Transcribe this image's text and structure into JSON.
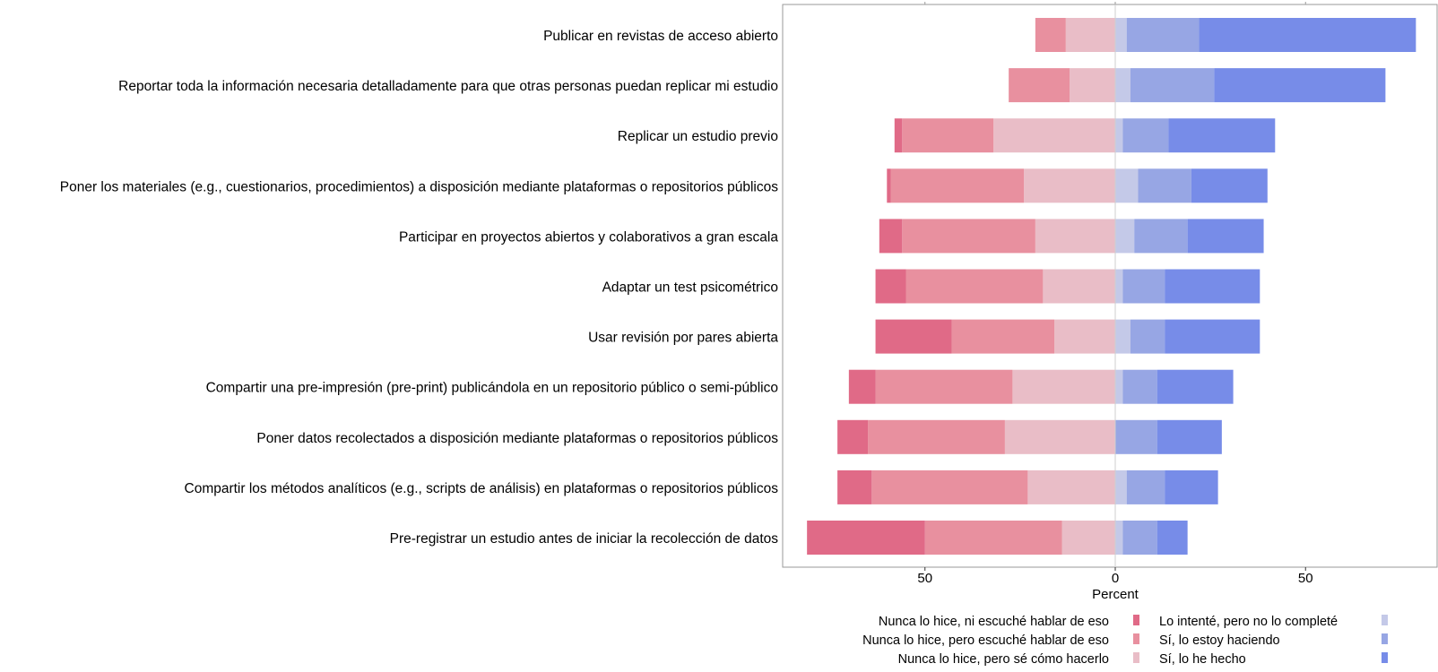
{
  "chart_data": {
    "type": "bar",
    "orientation": "horizontal",
    "stacking": "diverging",
    "xlabel": "Percent",
    "ylabel": "",
    "xlim": [
      -82,
      85
    ],
    "xticks": [
      -50,
      0,
      50
    ],
    "xtick_labels": [
      "50",
      "0",
      "50"
    ],
    "grid": false,
    "legend_position": "bottom",
    "categories": [
      "Publicar  en  revistas  de  acceso  abierto",
      "Reportar toda la información necesaria detalladamente para que otras personas puedan replicar mi estudio",
      "Replicar  un  estudio  previo",
      "Poner los materiales (e.g., cuestionarios, procedimientos) a disposición mediante plataformas o repositorios públicos",
      "Participar  en  proyectos  abiertos  y  colaborativos  a  gran  escala",
      "Adaptar un test psicométrico",
      "Usar  revisión  por  pares  abierta",
      "Compartir una pre-impresión (pre-print) publicándola en un repositorio público o semi-público",
      "Poner datos recolectados a disposición mediante plataformas o repositorios públicos",
      "Compartir los métodos analíticos (e.g., scripts de análisis) en plataformas o repositorios públicos",
      "Pre-registrar un estudio antes de iniciar la recolección de datos"
    ],
    "series": [
      {
        "name": "Nunca lo hice, ni escuché hablar de eso",
        "side": "negative",
        "color": "#e06a87",
        "values": [
          0,
          0,
          2,
          1,
          6,
          8,
          20,
          7,
          8,
          9,
          31
        ]
      },
      {
        "name": "Nunca lo hice, pero escuché hablar de eso",
        "side": "negative",
        "color": "#e8909f",
        "values": [
          8,
          16,
          24,
          35,
          35,
          36,
          27,
          36,
          36,
          41,
          36
        ]
      },
      {
        "name": "Nunca lo hice, pero sé cómo hacerlo",
        "side": "negative",
        "color": "#e9bdc7",
        "values": [
          13,
          12,
          32,
          24,
          21,
          19,
          16,
          27,
          29,
          23,
          14
        ]
      },
      {
        "name": "Lo intenté, pero no lo completé",
        "side": "positive",
        "color": "#c4c9e8",
        "values": [
          3,
          4,
          2,
          6,
          5,
          2,
          4,
          2,
          0,
          3,
          2
        ]
      },
      {
        "name": "Sí, lo estoy haciendo",
        "side": "positive",
        "color": "#97a6e4",
        "values": [
          19,
          22,
          12,
          14,
          14,
          11,
          9,
          9,
          11,
          10,
          9
        ]
      },
      {
        "name": "Sí, lo he hecho",
        "side": "positive",
        "color": "#778ce8",
        "values": [
          57,
          45,
          28,
          20,
          20,
          25,
          25,
          20,
          17,
          14,
          8
        ]
      }
    ]
  }
}
